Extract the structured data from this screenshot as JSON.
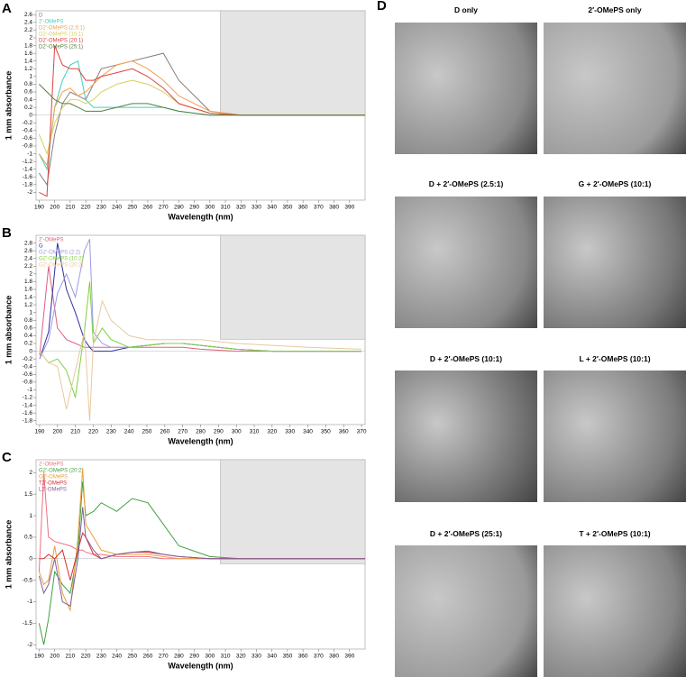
{
  "chart_data": [
    {
      "type": "line",
      "panel_label": "A",
      "x_label": "Wavelength (nm)",
      "y_label": "1 mm absorbance",
      "x": [
        190,
        195,
        200,
        205,
        210,
        215,
        220,
        225,
        230,
        240,
        250,
        260,
        270,
        280,
        300,
        320,
        350,
        400
      ],
      "xlim": [
        188,
        400
      ],
      "xticks": [
        190,
        200,
        210,
        220,
        230,
        240,
        250,
        260,
        270,
        280,
        290,
        300,
        310,
        320,
        330,
        340,
        350,
        360,
        370,
        380,
        390
      ],
      "ylim": [
        -2.2,
        2.7
      ],
      "yticks": [
        -2,
        -1.8,
        -1.6,
        -1.4,
        -1.2,
        -1,
        -0.8,
        -0.6,
        -0.4,
        -0.2,
        0,
        0.2,
        0.4,
        0.6,
        0.8,
        1,
        1.2,
        1.4,
        1.6,
        1.8,
        2,
        2.2,
        2.4,
        2.6
      ],
      "series": [
        {
          "name": "D",
          "color": "#808080",
          "values": [
            -1.5,
            -1.8,
            -0.5,
            0.3,
            0.6,
            0.5,
            0.4,
            0.8,
            1.2,
            1.3,
            1.4,
            1.5,
            1.6,
            0.9,
            0.1,
            0,
            0,
            0
          ]
        },
        {
          "name": "2'-OMePS",
          "color": "#40d0c0",
          "values": [
            -1,
            -1.4,
            0.2,
            0.9,
            1.3,
            1.4,
            0.4,
            0.2,
            0.2,
            0.2,
            0.2,
            0.2,
            0.2,
            0.1,
            0,
            0,
            0,
            0
          ]
        },
        {
          "name": "D2'-OMePS (2.5:1)",
          "color": "#f0a050",
          "values": [
            -1,
            -1.3,
            0.2,
            0.6,
            0.7,
            0.5,
            0.6,
            0.8,
            1,
            1.3,
            1.4,
            1.2,
            0.9,
            0.5,
            0.1,
            0,
            0,
            0
          ]
        },
        {
          "name": "D2'-OMePS (10:1)",
          "color": "#d8d060",
          "values": [
            -0.5,
            -1,
            -0.2,
            0.2,
            0.4,
            0.4,
            0.3,
            0.4,
            0.6,
            0.8,
            0.9,
            0.8,
            0.6,
            0.3,
            0.05,
            0,
            0,
            0
          ]
        },
        {
          "name": "D2'-OMePS (20:1)",
          "color": "#e04040",
          "values": [
            -2,
            -2.1,
            1.8,
            1.3,
            1.2,
            1.2,
            0.9,
            0.9,
            1,
            1.1,
            1.2,
            1,
            0.7,
            0.3,
            0.05,
            0,
            0,
            0
          ]
        },
        {
          "name": "D2'-OMePS (25:1)",
          "color": "#508040",
          "values": [
            0.8,
            0.6,
            0.4,
            0.3,
            0.3,
            0.2,
            0.1,
            0.1,
            0.1,
            0.2,
            0.3,
            0.3,
            0.2,
            0.1,
            0,
            0,
            0,
            0
          ]
        }
      ]
    },
    {
      "type": "line",
      "panel_label": "B",
      "x_label": "Wavelength (nm)",
      "y_label": "1 mm absorbance",
      "x": [
        190,
        195,
        200,
        205,
        210,
        215,
        218,
        220,
        225,
        230,
        240,
        250,
        260,
        270,
        280,
        300,
        320,
        340,
        370
      ],
      "xlim": [
        188,
        372
      ],
      "xticks": [
        190,
        200,
        210,
        220,
        230,
        240,
        250,
        260,
        270,
        280,
        290,
        300,
        310,
        320,
        330,
        340,
        350,
        360,
        370
      ],
      "ylim": [
        -1.9,
        3
      ],
      "yticks": [
        -1.8,
        -1.6,
        -1.4,
        -1.2,
        -1,
        -0.8,
        -0.6,
        -0.4,
        -0.2,
        0,
        0.2,
        0.4,
        0.6,
        0.8,
        1,
        1.2,
        1.4,
        1.6,
        1.8,
        2,
        2.2,
        2.4,
        2.6,
        2.8
      ],
      "series": [
        {
          "name": "2'-OMePS",
          "color": "#e06080",
          "values": [
            -0.1,
            2.2,
            0.6,
            0.3,
            0.2,
            0.1,
            0.1,
            0.1,
            0.1,
            0.1,
            0.1,
            0.1,
            0.1,
            0.1,
            0.05,
            0,
            0,
            0,
            0
          ]
        },
        {
          "name": "G",
          "color": "#3030a0",
          "values": [
            -0.2,
            0.5,
            2.8,
            1.6,
            1,
            0.3,
            0.1,
            0,
            0,
            0,
            0.1,
            0.15,
            0.2,
            0.2,
            0.15,
            0.05,
            0,
            0,
            0
          ]
        },
        {
          "name": "G2'-OMePS (2:2)",
          "color": "#9a9ae8",
          "values": [
            -0.2,
            0.3,
            1.5,
            2,
            1.4,
            2.6,
            2.9,
            0.5,
            0.2,
            0.1,
            0.1,
            0.15,
            0.2,
            0.2,
            0.15,
            0.05,
            0,
            0,
            0
          ]
        },
        {
          "name": "G2'-OMePS (10:2)",
          "color": "#80d040",
          "values": [
            0,
            -0.3,
            -0.2,
            -0.5,
            -1.2,
            0.5,
            1.8,
            0.2,
            0.6,
            0.3,
            0.1,
            0.15,
            0.2,
            0.2,
            0.15,
            0.05,
            0,
            0,
            0
          ]
        },
        {
          "name": "G2'-OMePS (20:2)",
          "color": "#e8c8a0",
          "values": [
            0,
            -0.3,
            -0.4,
            -1.5,
            -0.5,
            0.5,
            -1.8,
            0.2,
            1.3,
            0.8,
            0.4,
            0.3,
            0.3,
            0.3,
            0.3,
            0.2,
            0.15,
            0.1,
            0.05
          ]
        }
      ]
    },
    {
      "type": "line",
      "panel_label": "C",
      "x_label": "Wavelength (nm)",
      "y_label": "1 mm absorbance",
      "x": [
        190,
        193,
        196,
        200,
        205,
        210,
        215,
        218,
        220,
        225,
        230,
        240,
        250,
        260,
        270,
        280,
        300,
        320,
        350,
        400
      ],
      "xlim": [
        188,
        400
      ],
      "xticks": [
        190,
        200,
        210,
        220,
        230,
        240,
        250,
        260,
        270,
        280,
        290,
        300,
        310,
        320,
        330,
        340,
        350,
        360,
        370,
        380,
        390
      ],
      "ylim": [
        -2.1,
        2.3
      ],
      "yticks": [
        -2,
        -1.5,
        -1,
        -0.5,
        0,
        0.5,
        1,
        1.5,
        2
      ],
      "series": [
        {
          "name": "2'-OMePS",
          "color": "#f07080",
          "values": [
            -0.3,
            2,
            0.5,
            0.4,
            0.35,
            0.3,
            0.2,
            0.2,
            0.15,
            0.1,
            0.1,
            0.05,
            0.05,
            0.05,
            0,
            0,
            0,
            0,
            0,
            0
          ]
        },
        {
          "name": "G2'-OMePS (20:2)",
          "color": "#40a040",
          "values": [
            -1.5,
            -2,
            -1.4,
            -0.3,
            -0.6,
            -0.8,
            0.2,
            1.8,
            1,
            1.1,
            1.3,
            1.1,
            1.4,
            1.3,
            0.8,
            0.3,
            0.05,
            0,
            0,
            0
          ]
        },
        {
          "name": "O2'-OMePS",
          "color": "#e8a040",
          "values": [
            -0.3,
            -0.6,
            -0.5,
            0.3,
            -0.8,
            -1.2,
            0.5,
            2.1,
            0.8,
            0.5,
            0.2,
            0.1,
            0.1,
            0.1,
            0.05,
            0,
            0,
            0,
            0,
            0
          ]
        },
        {
          "name": "T2'-OMePS",
          "color": "#d03030",
          "values": [
            0,
            0,
            0.1,
            0,
            0.2,
            -0.5,
            0.2,
            0.6,
            0.5,
            0.1,
            0,
            0.1,
            0.15,
            0.15,
            0.1,
            0.05,
            0,
            0,
            0,
            0
          ]
        },
        {
          "name": "L2'-OMePS",
          "color": "#8060a0",
          "values": [
            -0.4,
            -0.8,
            -0.6,
            0,
            -1,
            -1.1,
            0,
            1.2,
            0.5,
            0.2,
            0,
            0.1,
            0.15,
            0.18,
            0.1,
            0.05,
            0,
            0,
            0,
            0
          ]
        }
      ]
    }
  ],
  "panel_d": {
    "label": "D",
    "images": [
      {
        "title": "D only"
      },
      {
        "title": "2′-OMePS only"
      },
      {
        "title": "D + 2′-OMePS (2.5:1)"
      },
      {
        "title": "G + 2′-OMePS (10:1)"
      },
      {
        "title": "D + 2′-OMePS (10:1)"
      },
      {
        "title": "L + 2′-OMePS (10:1)"
      },
      {
        "title": "D + 2′-OMePS (25:1)"
      },
      {
        "title": "T + 2′-OMePS (10:1)"
      }
    ]
  }
}
